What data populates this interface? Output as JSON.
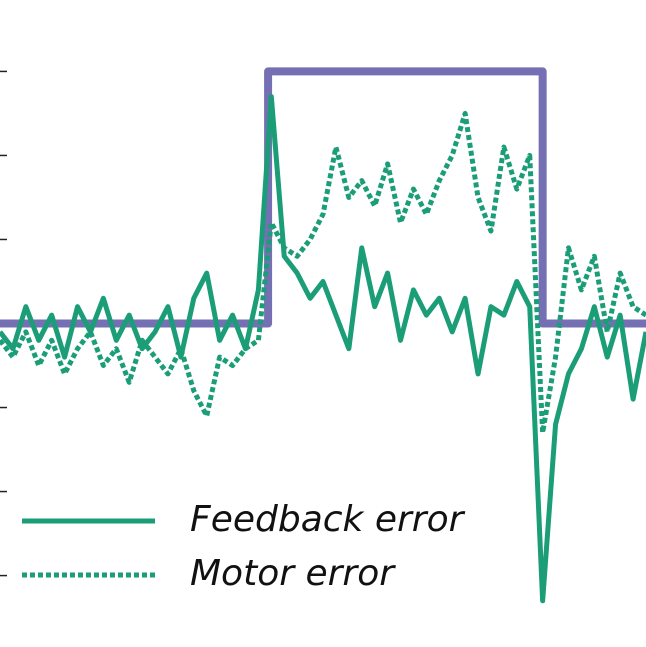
{
  "chart_data": {
    "type": "line",
    "xlim": [
      0,
      100
    ],
    "ylim": [
      -3.85,
      3.85
    ],
    "yticks": [
      -3,
      -2,
      -1,
      0,
      1,
      2,
      3
    ],
    "grid": false,
    "legend": "lower left",
    "series": [
      {
        "color": "#7570b3",
        "style": "solid",
        "x": [
          0,
          41.5,
          41.5,
          84,
          84,
          100
        ],
        "values": [
          0,
          0,
          3,
          3,
          0,
          0
        ]
      },
      {
        "name": "Feedback error",
        "color": "#1b9e77",
        "style": "solid",
        "x": [
          0,
          2,
          4,
          6,
          8,
          10,
          12,
          14,
          16,
          18,
          20,
          22,
          24,
          26,
          28,
          30,
          32,
          34,
          36,
          38,
          40,
          42,
          44,
          46,
          48,
          50,
          52,
          54,
          56,
          58,
          60,
          62,
          64,
          66,
          68,
          70,
          72,
          74,
          76,
          78,
          80,
          82,
          84,
          86,
          88,
          90,
          92,
          94,
          96,
          98,
          100
        ],
        "values": [
          -0.1,
          -0.3,
          0.2,
          -0.2,
          0.1,
          -0.4,
          0.2,
          -0.1,
          0.3,
          -0.2,
          0.1,
          -0.3,
          -0.1,
          0.2,
          -0.4,
          0.3,
          0.6,
          -0.2,
          0.1,
          -0.3,
          0.4,
          2.7,
          0.8,
          0.6,
          0.3,
          0.5,
          0.1,
          -0.3,
          0.9,
          0.2,
          0.6,
          -0.2,
          0.4,
          0.1,
          0.3,
          -0.1,
          0.3,
          -0.6,
          0.2,
          0.1,
          0.5,
          0.2,
          -3.3,
          -1.2,
          -0.6,
          -0.3,
          0.2,
          -0.4,
          0.1,
          -0.9,
          -0.1
        ]
      },
      {
        "name": "Motor error",
        "color": "#1b9e77",
        "style": "dotted",
        "x": [
          0,
          2,
          4,
          6,
          8,
          10,
          12,
          14,
          16,
          18,
          20,
          22,
          24,
          26,
          28,
          30,
          32,
          34,
          36,
          38,
          40,
          42,
          44,
          46,
          48,
          50,
          52,
          54,
          56,
          58,
          60,
          62,
          64,
          66,
          68,
          70,
          72,
          74,
          76,
          78,
          80,
          82,
          84,
          86,
          88,
          90,
          92,
          94,
          96,
          98,
          100
        ],
        "values": [
          -0.2,
          -0.4,
          -0.1,
          -0.5,
          -0.2,
          -0.6,
          -0.3,
          -0.1,
          -0.5,
          -0.3,
          -0.7,
          -0.2,
          -0.4,
          -0.6,
          -0.3,
          -0.8,
          -1.1,
          -0.4,
          -0.5,
          -0.3,
          -0.2,
          1.2,
          0.9,
          0.8,
          1.0,
          1.3,
          2.1,
          1.5,
          1.7,
          1.4,
          1.9,
          1.2,
          1.6,
          1.3,
          1.7,
          2.0,
          2.5,
          1.5,
          1.1,
          2.1,
          1.6,
          2.0,
          -1.3,
          -0.4,
          0.9,
          0.4,
          0.8,
          -0.1,
          0.6,
          0.2,
          0.1
        ]
      }
    ]
  }
}
